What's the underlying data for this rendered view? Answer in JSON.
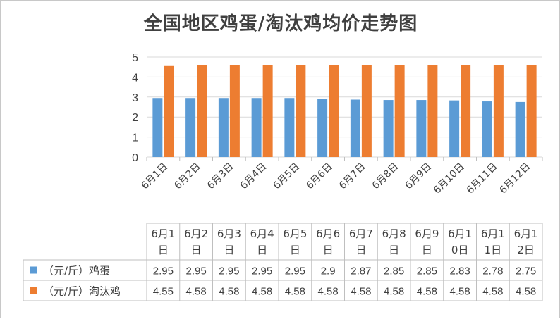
{
  "chart_data": {
    "type": "bar",
    "title": "全国地区鸡蛋/淘汰鸡均价走势图",
    "categories": [
      "6月1日",
      "6月2日",
      "6月3日",
      "6月4日",
      "6月5日",
      "6月6日",
      "6月7日",
      "6月8日",
      "6月9日",
      "6月10日",
      "6月11日",
      "6月12日"
    ],
    "table_headers": [
      [
        "6月1",
        "日"
      ],
      [
        "6月2",
        "日"
      ],
      [
        "6月3",
        "日"
      ],
      [
        "6月4",
        "日"
      ],
      [
        "6月5",
        "日"
      ],
      [
        "6月6",
        "日"
      ],
      [
        "6月7",
        "日"
      ],
      [
        "6月8",
        "日"
      ],
      [
        "6月9",
        "日"
      ],
      [
        "6月1",
        "0日"
      ],
      [
        "6月1",
        "1日"
      ],
      [
        "6月1",
        "2日"
      ]
    ],
    "series": [
      {
        "name": "（元/斤）鸡蛋",
        "color": "#5b9bd5",
        "values": [
          2.95,
          2.95,
          2.95,
          2.95,
          2.95,
          2.9,
          2.87,
          2.85,
          2.85,
          2.83,
          2.78,
          2.75
        ]
      },
      {
        "name": "（元/斤）淘汰鸡",
        "color": "#ed7d31",
        "values": [
          4.55,
          4.58,
          4.58,
          4.58,
          4.58,
          4.58,
          4.58,
          4.58,
          4.58,
          4.58,
          4.58,
          4.58
        ]
      }
    ],
    "ylim": [
      0,
      5
    ],
    "yticks": [
      "0",
      "1",
      "2",
      "3",
      "4",
      "5"
    ],
    "grid": true,
    "legend": "data-table"
  }
}
